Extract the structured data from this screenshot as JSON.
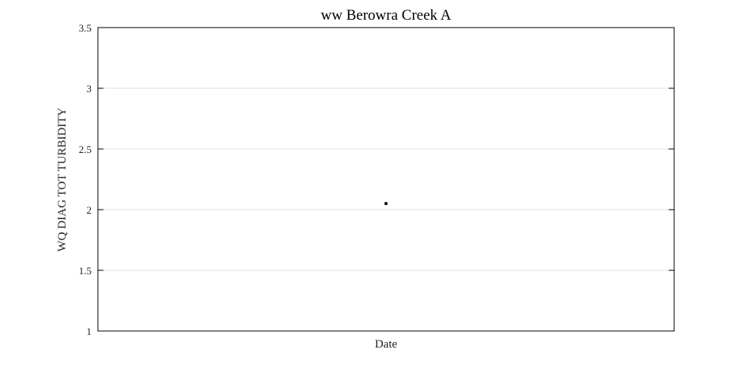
{
  "chart_data": {
    "type": "scatter",
    "title": "ww Berowra Creek A",
    "xlabel": "Date",
    "ylabel": "WQ DIAG TOT TURBIDITY",
    "ylim": [
      1,
      3.5
    ],
    "yticks": [
      1,
      1.5,
      2,
      2.5,
      3,
      3.5
    ],
    "ytick_labels": [
      "1",
      "1.5",
      "2",
      "2.5",
      "3",
      "3.5"
    ],
    "xticks": [],
    "grid": {
      "y": true,
      "x": false
    },
    "colors": {
      "marker": "#000000",
      "grid": "#e0e0e0",
      "frame": "#000000"
    },
    "series": [
      {
        "marker": "dot",
        "points": [
          {
            "x": 0.5,
            "y": 2.05
          }
        ]
      }
    ],
    "xlim": [
      0,
      1
    ]
  }
}
